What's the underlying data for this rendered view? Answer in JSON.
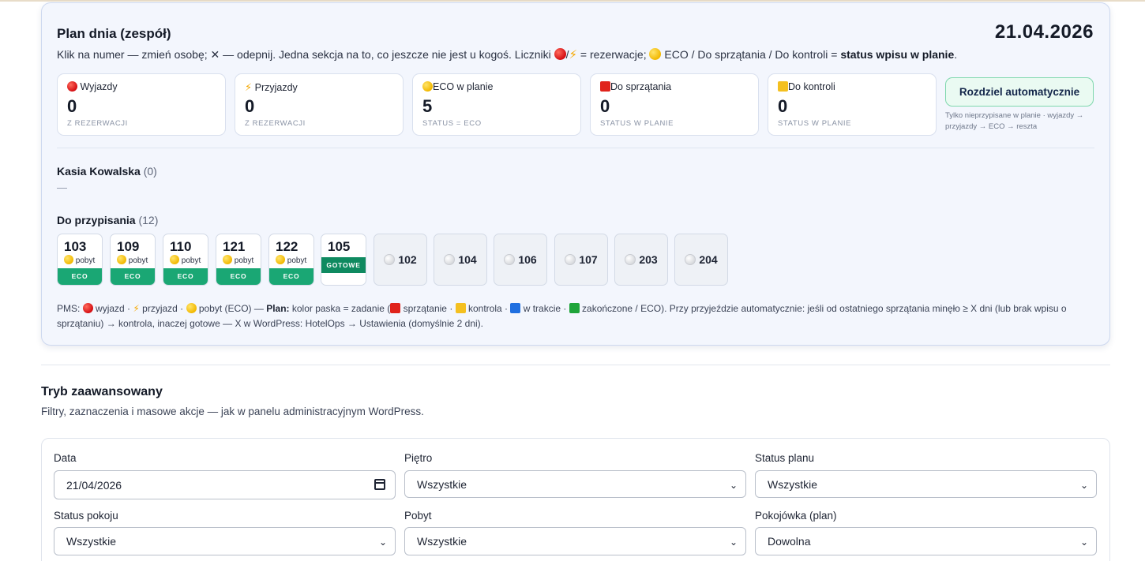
{
  "plan": {
    "title": "Plan dnia (zespół)",
    "date": "21.04.2026",
    "description_part1": "Klik na numer — zmień osobę; ✕ — odepnij. Jedna sekcja na to, co jeszcze nie jest u kogoś. Liczniki ",
    "description_part2": "/",
    "description_part3": " = rezerwacje; ",
    "description_part4": " ECO / Do sprzątania / Do kontroli = ",
    "description_bold": "status wpisu w planie",
    "description_end": "."
  },
  "stats": [
    {
      "label": "Wyjazdy",
      "icon": "red-circle-icon",
      "value": "0",
      "sub": "Z REZERWACJI"
    },
    {
      "label": "Przyjazdy",
      "icon": "lightning-icon",
      "value": "0",
      "sub": "Z REZERWACJI"
    },
    {
      "label": "ECO w planie",
      "icon": "yellow-circle-icon",
      "value": "5",
      "sub": "STATUS = ECO"
    },
    {
      "label": "Do sprzątania",
      "icon": "red-square-icon",
      "value": "0",
      "sub": "STATUS W PLANIE"
    },
    {
      "label": "Do kontroli",
      "icon": "yellow-square-icon",
      "value": "0",
      "sub": "STATUS W PLANIE"
    }
  ],
  "auto_button": {
    "label": "Rozdziel automatycznie",
    "note": "Tylko nieprzypisane w planie · wyjazdy → przyjazdy → ECO → reszta"
  },
  "person": {
    "name": "Kasia Kowalska",
    "count": "(0)",
    "empty": "—"
  },
  "unassigned": {
    "title": "Do przypisania",
    "count": "(12)",
    "rooms_eco": [
      {
        "number": "103",
        "stay": "pobyt",
        "badge": "ECO"
      },
      {
        "number": "109",
        "stay": "pobyt",
        "badge": "ECO"
      },
      {
        "number": "110",
        "stay": "pobyt",
        "badge": "ECO"
      },
      {
        "number": "121",
        "stay": "pobyt",
        "badge": "ECO"
      },
      {
        "number": "122",
        "stay": "pobyt",
        "badge": "ECO"
      }
    ],
    "room_ready": {
      "number": "105",
      "badge": "GOTOWE"
    },
    "rooms_grey": [
      "102",
      "104",
      "106",
      "107",
      "203",
      "204"
    ]
  },
  "legend": {
    "pms": "PMS:",
    "wyjazd": " wyjazd · ",
    "przyjazd": " przyjazd · ",
    "pobyt": " pobyt (ECO) — ",
    "plan_label": "Plan:",
    "plan_text": " kolor paska = zadanie (",
    "sprzatanie": " sprzątanie · ",
    "kontrola": " kontrola · ",
    "w_trakcie": " w trakcie · ",
    "zakonczone": " zakończone / ECO). Przy przyjeździe automatycznie: jeśli od ostatniego sprzątania minęło ≥ X dni (lub brak wpisu o sprzątaniu) → kontrola, inaczej gotowe — X w WordPress: HotelOps → Ustawienia (domyślnie 2 dni)."
  },
  "advanced": {
    "title": "Tryb zaawansowany",
    "subtitle": "Filtry, zaznaczenia i masowe akcje — jak w panelu administracyjnym WordPress.",
    "filters": {
      "date_label": "Data",
      "date_value": "21/04/2026",
      "floor_label": "Piętro",
      "floor_value": "Wszystkie",
      "plan_status_label": "Status planu",
      "plan_status_value": "Wszystkie",
      "room_status_label": "Status pokoju",
      "room_status_value": "Wszystkie",
      "stay_label": "Pobyt",
      "stay_value": "Wszystkie",
      "maid_label": "Pokojówka (plan)",
      "maid_value": "Dowolna"
    }
  },
  "colors": {
    "eco_bar": "#1aa774",
    "ready_bar": "#0f8a60",
    "auto_button_bg": "#eafaf2",
    "card_bg": "#f3f6fd"
  }
}
